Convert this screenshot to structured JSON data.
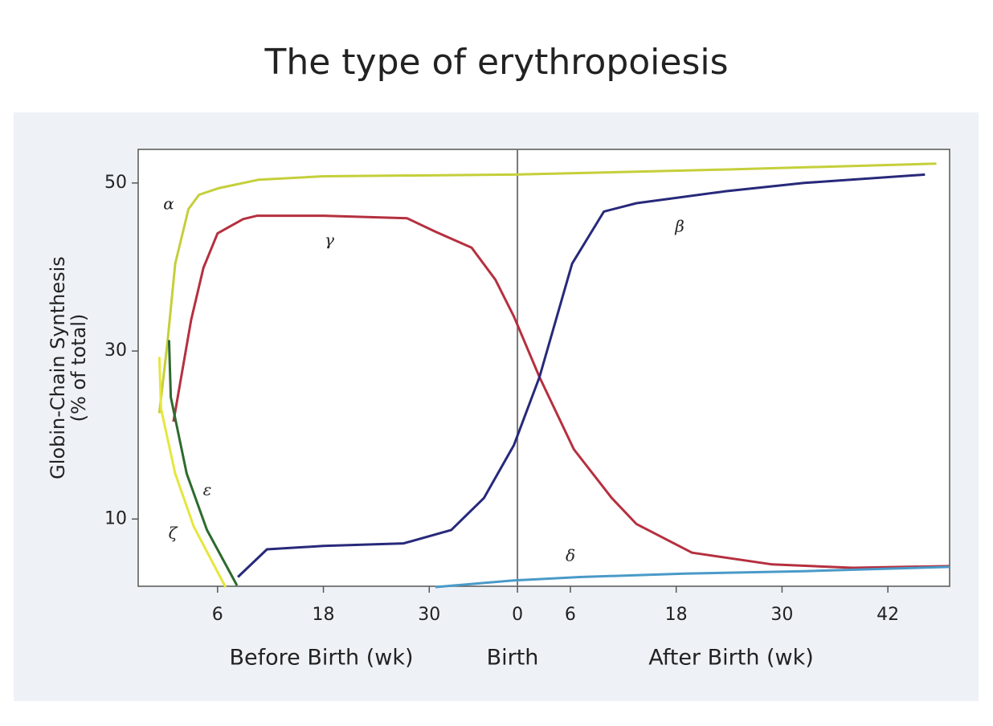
{
  "chart_data": {
    "type": "line",
    "title": "The type of erythropoiesis",
    "y_label": [
      "Globin-Chain Synthesis",
      "(% of total)"
    ],
    "x_group_labels": [
      "Before Birth (wk)",
      "Birth",
      "After Birth (wk)"
    ],
    "xlim": [
      -3,
      89
    ],
    "ylim": [
      2,
      54
    ],
    "xticks": [
      6,
      18,
      30,
      {
        "value": 40,
        "label": "0"
      },
      {
        "value": 46,
        "label": "6"
      },
      {
        "value": 58,
        "label": "18"
      },
      {
        "value": 70,
        "label": "30"
      },
      {
        "value": 82,
        "label": "42"
      }
    ],
    "yticks": [
      10,
      30,
      50
    ],
    "vline": 40,
    "grid": false,
    "series": [
      {
        "name": "α",
        "color": "#c5cf3a",
        "x": [
          -0.6,
          0.3,
          1.2,
          2.7,
          3.9,
          6.2,
          10.7,
          18,
          39.6,
          63.5,
          87.5
        ],
        "values": [
          22.6,
          30.8,
          40.4,
          46.9,
          48.6,
          49.4,
          50.4,
          50.8,
          51.0,
          51.6,
          52.3
        ]
      },
      {
        "name": "γ",
        "color": "#b5303f",
        "x": [
          1.0,
          3.0,
          4.4,
          6,
          8.9,
          10.5,
          18,
          27.5,
          30.7,
          34.8,
          37.5,
          39.6,
          42.5,
          46.4,
          50.7,
          53.5,
          59.8,
          68.9,
          78,
          89
        ],
        "values": [
          21.6,
          33.7,
          39.9,
          44.0,
          45.7,
          46.1,
          46.1,
          45.8,
          44.2,
          42.3,
          38.5,
          34.1,
          26.9,
          18.3,
          12.5,
          9.4,
          6.0,
          4.6,
          4.2,
          4.4
        ]
      },
      {
        "name": "β",
        "color": "#27297a",
        "x": [
          8.3,
          11.6,
          18,
          27.1,
          32.5,
          36.2,
          39.6,
          42.5,
          46.2,
          49.8,
          53.5,
          63.5,
          72.5,
          86.2
        ],
        "values": [
          3.1,
          6.4,
          6.8,
          7.1,
          8.7,
          12.5,
          18.8,
          26.9,
          40.4,
          46.6,
          47.6,
          49.0,
          50.0,
          51.0
        ]
      },
      {
        "name": "ε",
        "color": "#2e6a2e",
        "x": [
          0.5,
          0.7,
          2.5,
          4.8,
          8.2
        ],
        "values": [
          31.3,
          24.5,
          15.4,
          8.7,
          2.1
        ]
      },
      {
        "name": "ζ",
        "color": "#e6e63e",
        "x": [
          -0.6,
          -0.4,
          1.2,
          3.3,
          6.9
        ],
        "values": [
          29.3,
          23.1,
          15.4,
          9.1,
          1.9
        ]
      },
      {
        "name": "δ",
        "color": "#4a9ac8",
        "x": [
          30.7,
          39.6,
          47.1,
          58.9,
          72.5,
          89
        ],
        "values": [
          1.9,
          2.7,
          3.1,
          3.5,
          3.8,
          4.3
        ]
      }
    ]
  }
}
